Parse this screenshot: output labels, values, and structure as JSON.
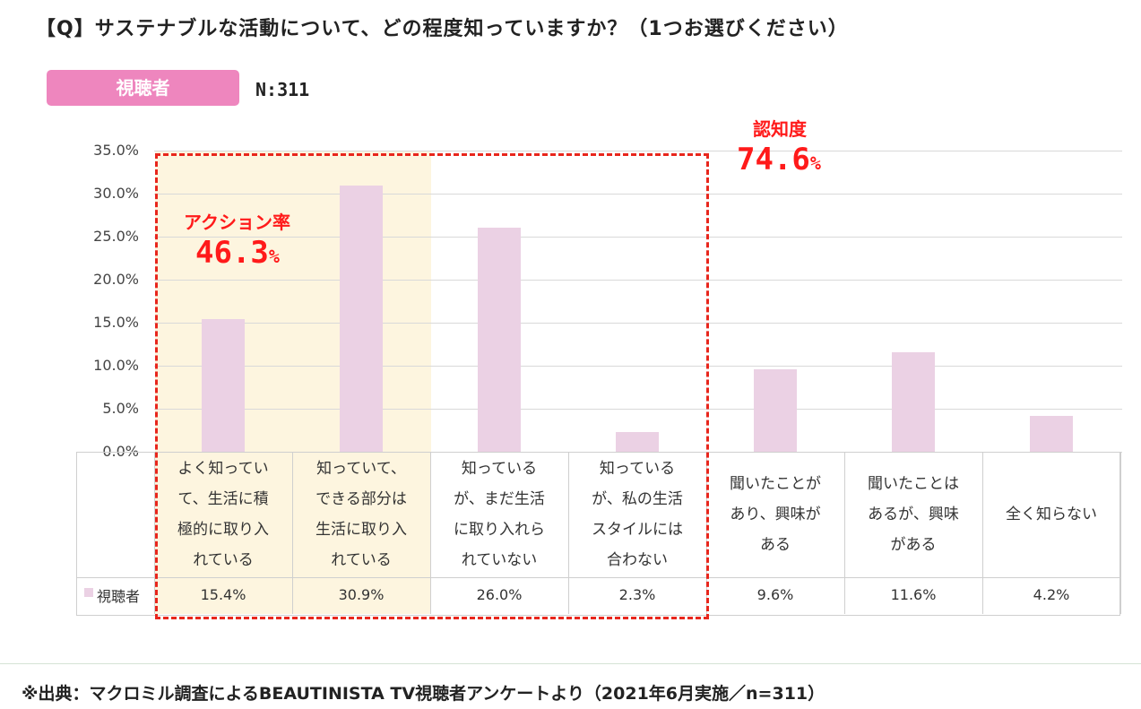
{
  "header": {
    "question": "【Q】サステナブルな活動について、どの程度知っていますか？（1つお選びください）",
    "segment_badge": "視聴者",
    "sample_size": "N:311"
  },
  "chart_data": {
    "type": "bar",
    "title": "【Q】サステナブルな活動について、どの程度知っていますか？（1つお選びください）",
    "categories": [
      [
        "よく知ってい",
        "て、生活に積",
        "極的に取り入",
        "れている"
      ],
      [
        "知っていて、",
        "できる部分は",
        "生活に取り入",
        "れている"
      ],
      [
        "知っている",
        "が、まだ生活",
        "に取り入れら",
        "れていない"
      ],
      [
        "知っている",
        "が、私の生活",
        "スタイルには",
        "合わない"
      ],
      [
        "聞いたことが",
        "あり、興味が",
        "ある"
      ],
      [
        "聞いたことは",
        "あるが、興味",
        "がある"
      ],
      [
        "全く知らない"
      ]
    ],
    "series": [
      {
        "name": "視聴者",
        "values": [
          15.4,
          30.9,
          26.0,
          2.3,
          9.6,
          11.6,
          4.2
        ],
        "labels": [
          "15.4%",
          "30.9%",
          "26.0%",
          "2.3%",
          "9.6%",
          "11.6%",
          "4.2%"
        ]
      }
    ],
    "ylim": [
      0,
      35
    ],
    "yticks": [
      "0.0%",
      "5.0%",
      "10.0%",
      "15.0%",
      "20.0%",
      "25.0%",
      "30.0%",
      "35.0%"
    ],
    "grid": true,
    "legend": "bottom-left (data table)",
    "colors": {
      "bar": "#ebd1e4",
      "highlight": "#fdf5df",
      "annotation": "#ff1a1a",
      "badge": "#ee86be"
    }
  },
  "annotations": {
    "action": {
      "title": "アクション率",
      "value": "46.3",
      "unit": "%"
    },
    "awareness": {
      "title": "認知度",
      "value": "74.6",
      "unit": "%"
    }
  },
  "footer": {
    "source": "※出典：マクロミル調査によるBEAUTINISTA TV視聴者アンケートより（2021年6月実施／n=311）"
  }
}
